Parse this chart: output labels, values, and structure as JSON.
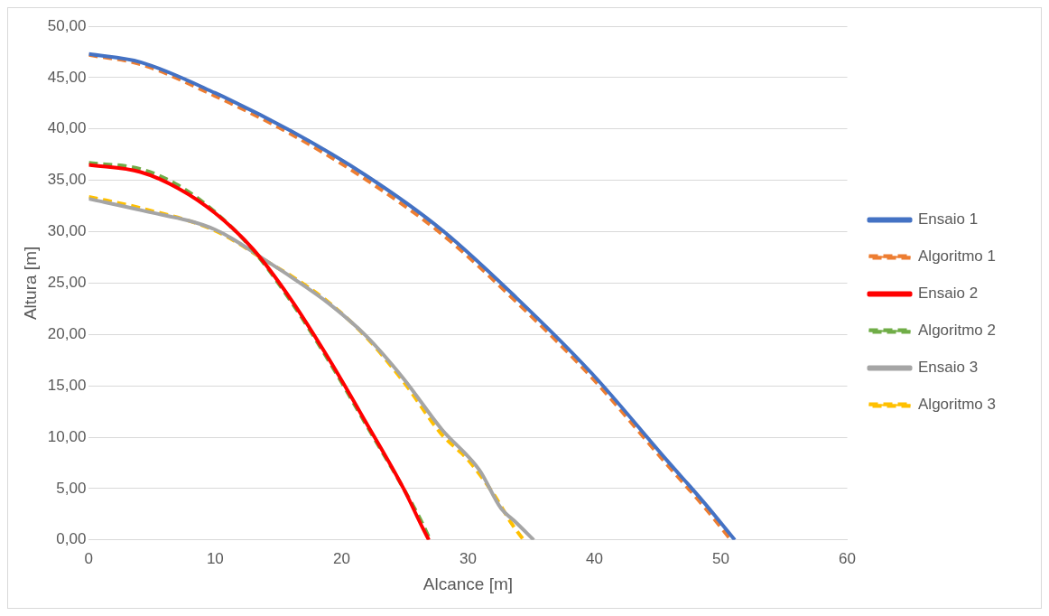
{
  "chart_data": {
    "type": "line",
    "xlabel": "Alcance [m]",
    "ylabel": "Altura [m]",
    "xlim": [
      0,
      60
    ],
    "xticks": [
      0,
      10,
      20,
      30,
      40,
      50,
      60
    ],
    "ylim": [
      0,
      50
    ],
    "yticks": [
      {
        "value": 0,
        "label": "0,00"
      },
      {
        "value": 5,
        "label": "5,00"
      },
      {
        "value": 10,
        "label": "10,00"
      },
      {
        "value": 15,
        "label": "15,00"
      },
      {
        "value": 20,
        "label": "20,00"
      },
      {
        "value": 25,
        "label": "25,00"
      },
      {
        "value": 30,
        "label": "30,00"
      },
      {
        "value": 35,
        "label": "35,00"
      },
      {
        "value": 40,
        "label": "40,00"
      },
      {
        "value": 45,
        "label": "45,00"
      },
      {
        "value": 50,
        "label": "50,00"
      }
    ],
    "grid": "y",
    "legend": "right",
    "marker": "none",
    "series": [
      {
        "name": "Ensaio 1",
        "color": "#4472c4",
        "line_style": "solid",
        "x": [
          0,
          4.1,
          10,
          16,
          21.9,
          27.9,
          33.8,
          39.8,
          45.7,
          48.7,
          51.1
        ],
        "values": [
          47.3,
          46.5,
          43.5,
          39.8,
          35.5,
          30.2,
          23.6,
          16.2,
          7.8,
          3.6,
          0
        ]
      },
      {
        "name": "Algoritmo 1",
        "color": "#ed7d31",
        "line_style": "dashed",
        "x": [
          0,
          4.1,
          10,
          16,
          21.9,
          27.9,
          33.8,
          39.8,
          45.7,
          48.7,
          50.8
        ],
        "values": [
          47.2,
          46.3,
          43.2,
          39.5,
          35.1,
          29.8,
          23.2,
          15.8,
          7.4,
          3.2,
          0
        ]
      },
      {
        "name": "Ensaio 2",
        "color": "#ff0000",
        "line_style": "solid",
        "x": [
          0,
          4.1,
          7.1,
          10,
          13,
          16,
          19,
          21.9,
          24.9,
          26.4,
          26.9
        ],
        "values": [
          36.5,
          35.8,
          34.2,
          31.8,
          28.3,
          23.4,
          17.6,
          11.5,
          5,
          1.2,
          0
        ]
      },
      {
        "name": "Algoritmo 2",
        "color": "#70ad47",
        "line_style": "dashed",
        "x": [
          0,
          4.1,
          7.1,
          10,
          13,
          16,
          19,
          21.9,
          24.9,
          26.4,
          27
        ],
        "values": [
          36.7,
          36.1,
          34.5,
          31.9,
          28.2,
          23.2,
          17.4,
          11.3,
          5,
          1.6,
          0
        ]
      },
      {
        "name": "Ensaio 3",
        "color": "#a5a5a5",
        "line_style": "solid",
        "x": [
          0,
          4.1,
          10,
          14.5,
          16,
          19,
          21.9,
          24.9,
          27.9,
          30.9,
          32.6,
          33.8,
          35.2
        ],
        "values": [
          33.2,
          32.1,
          30.2,
          26.8,
          25.6,
          23,
          19.9,
          15.7,
          10.8,
          6.8,
          3.1,
          1.7,
          0
        ]
      },
      {
        "name": "Algoritmo 3",
        "color": "#ffc000",
        "line_style": "dashed",
        "x": [
          0,
          4.1,
          10,
          14.5,
          16,
          19,
          21.9,
          24.9,
          27.9,
          30,
          32,
          33.5,
          34.4
        ],
        "values": [
          33.4,
          32.3,
          30.1,
          26.8,
          25.7,
          23.1,
          19.8,
          15.4,
          10.3,
          7.8,
          4.5,
          1.5,
          0
        ]
      }
    ]
  }
}
